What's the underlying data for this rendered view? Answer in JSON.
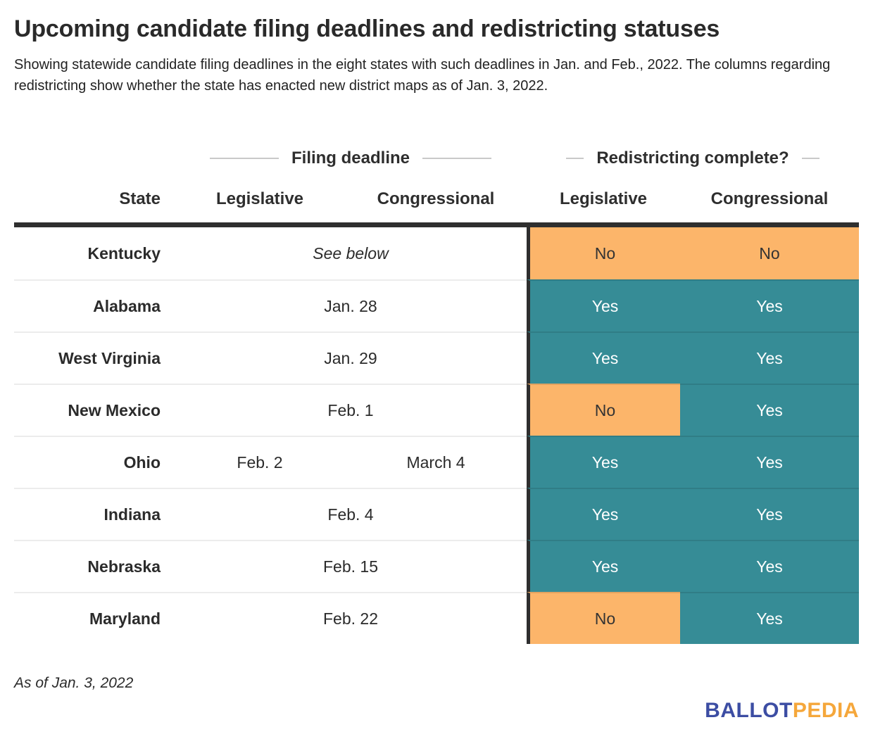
{
  "header": {
    "title": "Upcoming candidate filing deadlines and redistricting statuses",
    "subtitle": "Showing statewide candidate filing deadlines in the eight states with such deadlines in Jan. and Feb., 2022. The columns regarding redistricting show whether the state has enacted new district maps as of Jan. 3, 2022."
  },
  "table": {
    "group_headers": [
      {
        "label": "Filing deadline"
      },
      {
        "label": "Redistricting complete?"
      }
    ],
    "columns": {
      "state": "State",
      "filing_legislative": "Legislative",
      "filing_congressional": "Congressional",
      "redistricting_legislative": "Legislative",
      "redistricting_congressional": "Congressional"
    },
    "rows": [
      {
        "state": "Kentucky",
        "filing": "See below",
        "filing_style": "italic",
        "leg": "No",
        "cong": "No"
      },
      {
        "state": "Alabama",
        "filing": "Jan. 28",
        "leg": "Yes",
        "cong": "Yes"
      },
      {
        "state": "West Virginia",
        "filing": "Jan. 29",
        "leg": "Yes",
        "cong": "Yes"
      },
      {
        "state": "New Mexico",
        "filing": "Feb. 1",
        "leg": "No",
        "cong": "Yes"
      },
      {
        "state": "Ohio",
        "filing_leg": "Feb. 2",
        "filing_cong": "March 4",
        "leg": "Yes",
        "cong": "Yes"
      },
      {
        "state": "Indiana",
        "filing": "Feb. 4",
        "leg": "Yes",
        "cong": "Yes"
      },
      {
        "state": "Nebraska",
        "filing": "Feb. 15",
        "leg": "Yes",
        "cong": "Yes"
      },
      {
        "state": "Maryland",
        "filing": "Feb. 22",
        "leg": "No",
        "cong": "Yes"
      }
    ]
  },
  "footer": {
    "note": "As of Jan. 3, 2022",
    "logo_ballot": "BALLOT",
    "logo_pedia": "PEDIA"
  },
  "colors": {
    "yes_teal": "#368c96",
    "no_orange": "#fcb56a",
    "header_rule": "#2f2f2f",
    "row_separator": "#ececec",
    "group_line_gray": "#c9c9c9",
    "logo_blue": "#3c4da3",
    "logo_gold": "#f5a73b"
  },
  "chart_data": {
    "type": "table",
    "title": "Upcoming candidate filing deadlines and redistricting statuses",
    "subtitle": "Showing statewide candidate filing deadlines in the eight states with such deadlines in Jan. and Feb., 2022. The columns regarding redistricting show whether the state has enacted new district maps as of Jan. 3, 2022.",
    "column_groups": [
      "Filing deadline",
      "Redistricting complete?"
    ],
    "columns": [
      "State",
      "Filing deadline - Legislative",
      "Filing deadline - Congressional",
      "Redistricting complete? - Legislative",
      "Redistricting complete? - Congressional"
    ],
    "rows": [
      [
        "Kentucky",
        "See below",
        "See below",
        "No",
        "No"
      ],
      [
        "Alabama",
        "Jan. 28",
        "Jan. 28",
        "Yes",
        "Yes"
      ],
      [
        "West Virginia",
        "Jan. 29",
        "Jan. 29",
        "Yes",
        "Yes"
      ],
      [
        "New Mexico",
        "Feb. 1",
        "Feb. 1",
        "No",
        "Yes"
      ],
      [
        "Ohio",
        "Feb. 2",
        "March 4",
        "Yes",
        "Yes"
      ],
      [
        "Indiana",
        "Feb. 4",
        "Feb. 4",
        "Yes",
        "Yes"
      ],
      [
        "Nebraska",
        "Feb. 15",
        "Feb. 15",
        "Yes",
        "Yes"
      ],
      [
        "Maryland",
        "Feb. 22",
        "Feb. 22",
        "No",
        "Yes"
      ]
    ],
    "note": "As of Jan. 3, 2022",
    "source_brand": "BALLOTPEDIA"
  }
}
